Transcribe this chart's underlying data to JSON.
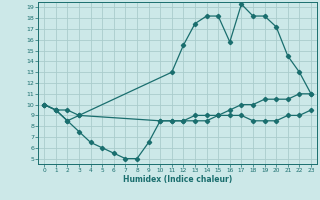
{
  "xlabel": "Humidex (Indice chaleur)",
  "ylabel": "",
  "bg_color": "#cce8e8",
  "grid_color": "#aacccc",
  "line_color": "#1a6e6e",
  "xlim": [
    -0.5,
    23.5
  ],
  "ylim": [
    4.5,
    19.5
  ],
  "xticks": [
    0,
    1,
    2,
    3,
    4,
    5,
    6,
    7,
    8,
    9,
    10,
    11,
    12,
    13,
    14,
    15,
    16,
    17,
    18,
    19,
    20,
    21,
    22,
    23
  ],
  "yticks": [
    5,
    6,
    7,
    8,
    9,
    10,
    11,
    12,
    13,
    14,
    15,
    16,
    17,
    18,
    19
  ],
  "line1_x": [
    0,
    1,
    2,
    3,
    11,
    12,
    13,
    14,
    15,
    16,
    17,
    18,
    19,
    20,
    21,
    22,
    23
  ],
  "line1_y": [
    10,
    9.5,
    9.5,
    9,
    13,
    15.5,
    17.5,
    18.2,
    18.2,
    15.8,
    19.3,
    18.2,
    18.2,
    17.2,
    14.5,
    13,
    11
  ],
  "line2_x": [
    0,
    1,
    2,
    3,
    10,
    11,
    12,
    13,
    14,
    15,
    16,
    17,
    18,
    19,
    20,
    21,
    22,
    23
  ],
  "line2_y": [
    10,
    9.5,
    8.5,
    9,
    8.5,
    8.5,
    8.5,
    9,
    9,
    9,
    9.5,
    10,
    10,
    10.5,
    10.5,
    10.5,
    11,
    11
  ],
  "line3_x": [
    0,
    1,
    2,
    3,
    4,
    5,
    6,
    7,
    8,
    9,
    10,
    11,
    12,
    13,
    14,
    15,
    16,
    17,
    18,
    19,
    20,
    21,
    22,
    23
  ],
  "line3_y": [
    10,
    9.5,
    8.5,
    7.5,
    6.5,
    6,
    5.5,
    5,
    5,
    6.5,
    8.5,
    8.5,
    8.5,
    8.5,
    8.5,
    9,
    9,
    9,
    8.5,
    8.5,
    8.5,
    9,
    9,
    9.5
  ]
}
